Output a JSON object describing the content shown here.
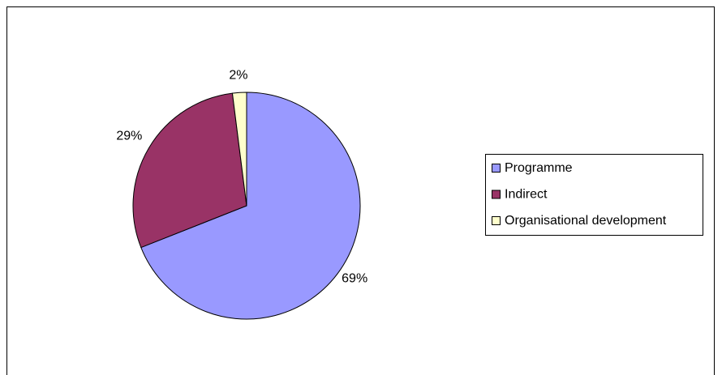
{
  "chart_data": {
    "type": "pie",
    "categories": [
      "Programme",
      "Indirect",
      "Organisational development"
    ],
    "values": [
      69,
      29,
      2
    ],
    "value_labels": [
      "69%",
      "29%",
      "2%"
    ],
    "colors": [
      "#9999ff",
      "#993366",
      "#ffffcc"
    ],
    "legend": "right"
  }
}
